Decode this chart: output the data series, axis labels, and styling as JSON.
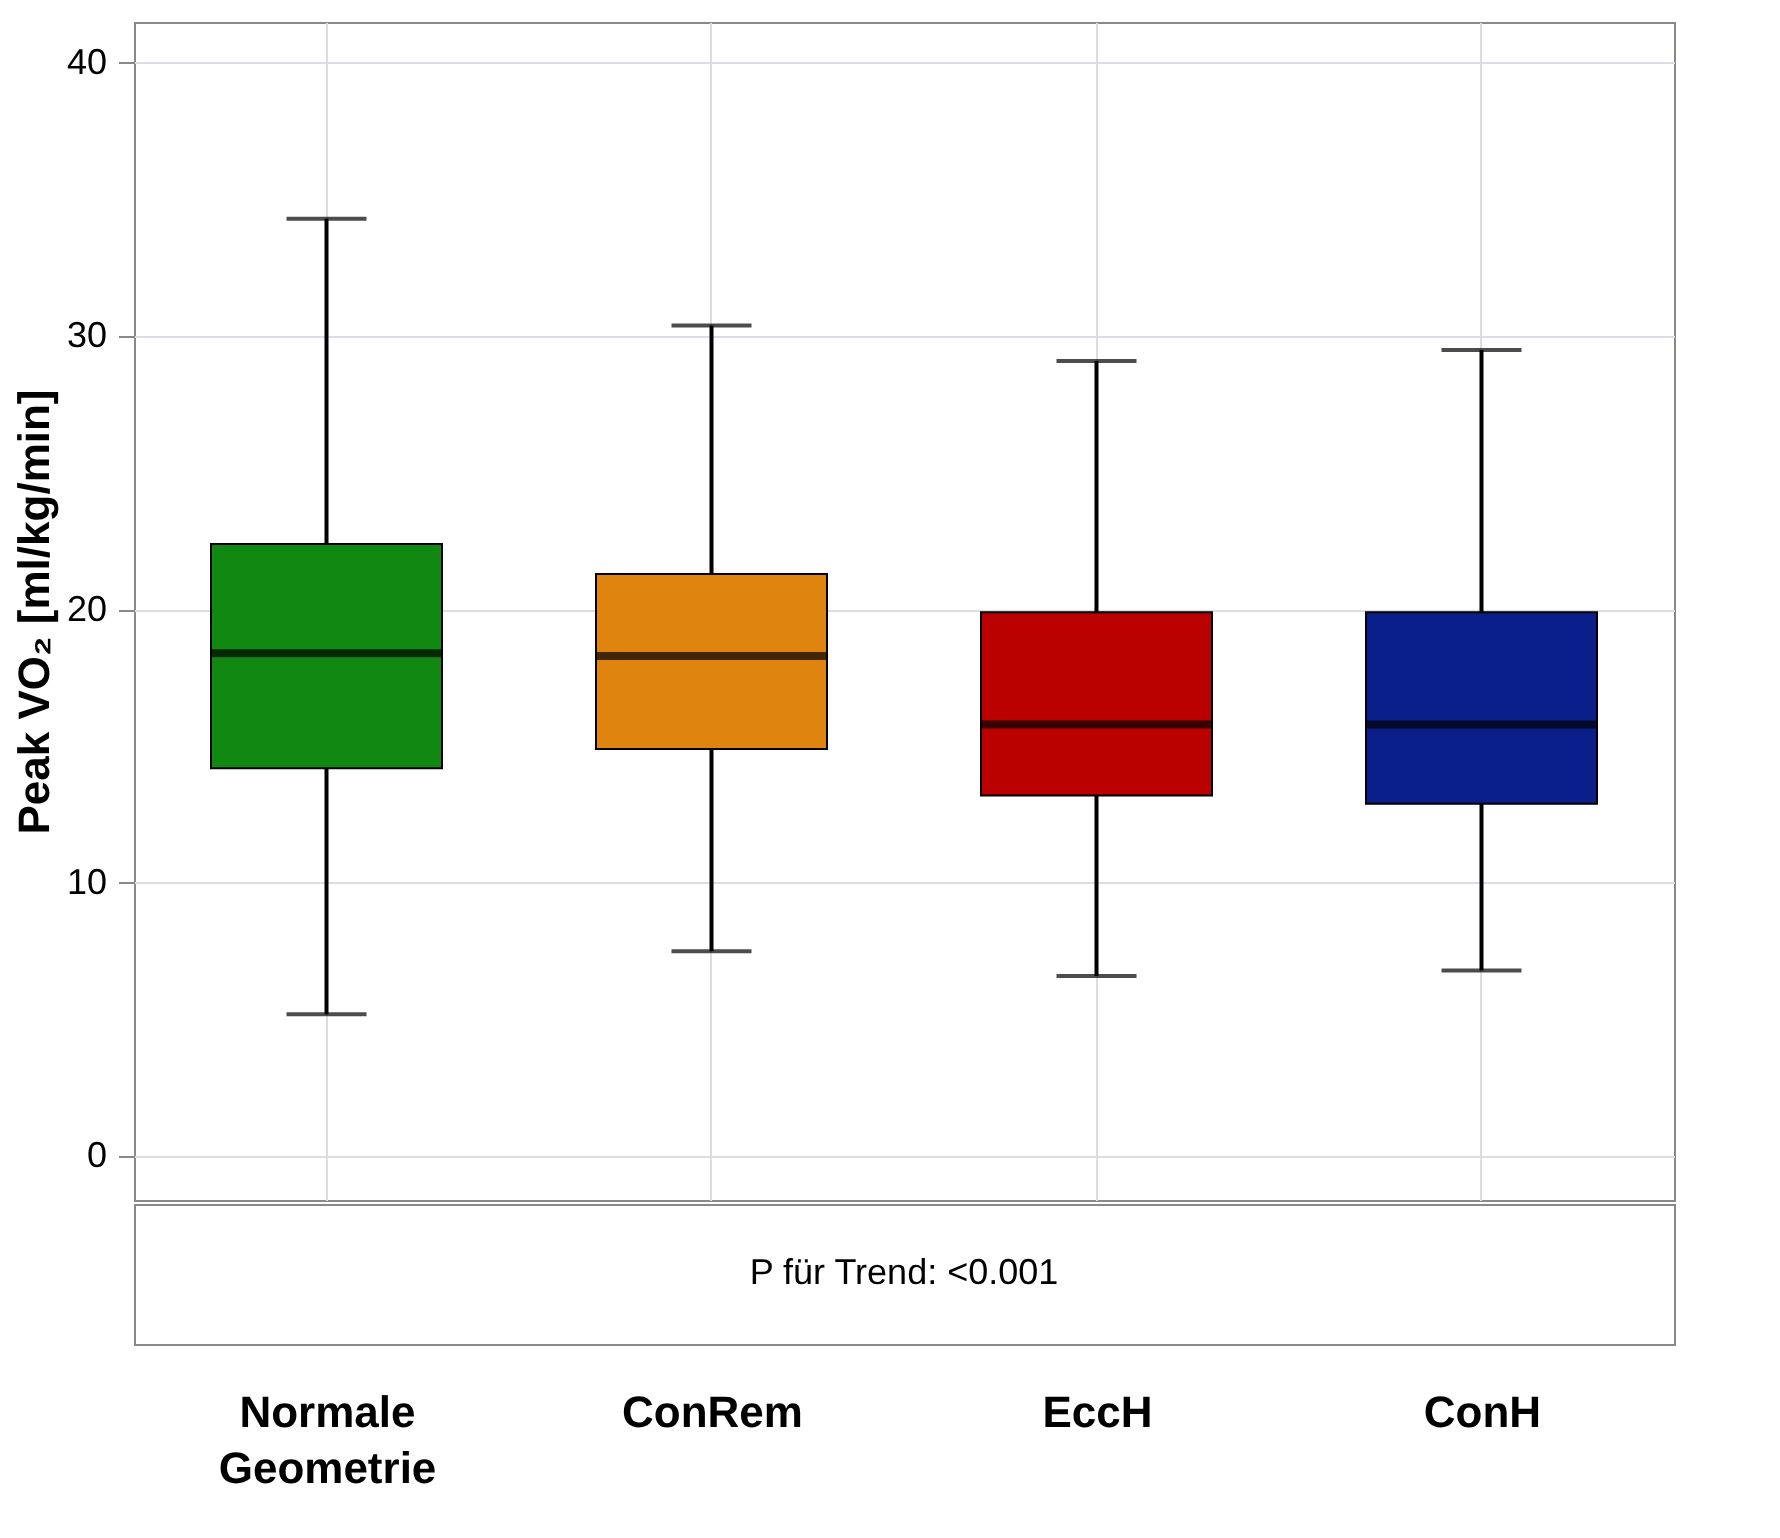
{
  "chart_data": {
    "type": "box",
    "ylabel": "Peak VO₂ [ml/kg/min]",
    "categories": [
      "Normale Geometrie",
      "ConRem",
      "EccH",
      "ConH"
    ],
    "boxes": [
      {
        "low": 5.2,
        "q1": 14.2,
        "median": 18.4,
        "q3": 22.4,
        "high": 34.3
      },
      {
        "low": 7.5,
        "q1": 14.9,
        "median": 18.3,
        "q3": 21.3,
        "high": 30.4
      },
      {
        "low": 6.6,
        "q1": 13.2,
        "median": 15.8,
        "q3": 19.9,
        "high": 29.1
      },
      {
        "low": 6.8,
        "q1": 12.9,
        "median": 15.8,
        "q3": 19.9,
        "high": 29.5
      }
    ],
    "colors": [
      "#118811",
      "#e08410",
      "#bb0000",
      "#0a1f8a"
    ],
    "ylim": [
      -1.6,
      41.5
    ],
    "yticks": [
      0,
      10,
      20,
      30,
      40
    ],
    "grid": true,
    "annotations": [
      "P für Trend:  <0.001"
    ]
  }
}
